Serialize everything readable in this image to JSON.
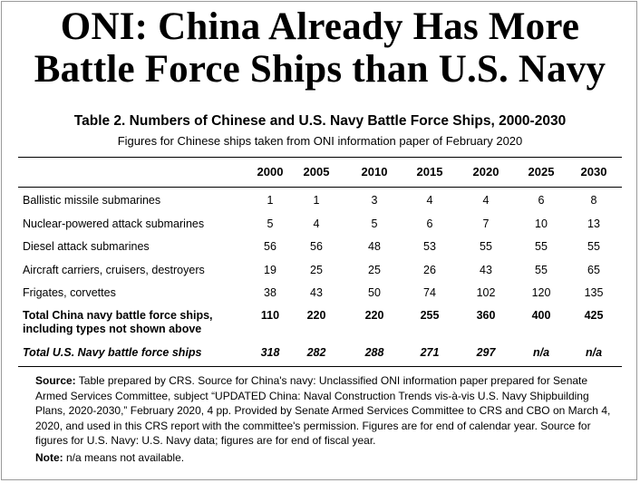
{
  "headline": {
    "line1": "ONI: China Already Has More",
    "line2": "Battle Force Ships than U.S. Navy"
  },
  "table": {
    "title": "Table 2. Numbers of Chinese and U.S. Navy Battle Force Ships, 2000-2030",
    "subtitle": "Figures for Chinese ships taken from ONI information paper of February 2020",
    "columns": [
      "2000",
      "2005",
      "2010",
      "2015",
      "2020",
      "2025",
      "2030"
    ],
    "rows": [
      {
        "label": "Ballistic missile submarines",
        "values": [
          "1",
          "1",
          "3",
          "4",
          "4",
          "6",
          "8"
        ]
      },
      {
        "label": "Nuclear-powered attack submarines",
        "values": [
          "5",
          "4",
          "5",
          "6",
          "7",
          "10",
          "13"
        ]
      },
      {
        "label": "Diesel attack submarines",
        "values": [
          "56",
          "56",
          "48",
          "53",
          "55",
          "55",
          "55"
        ]
      },
      {
        "label": "Aircraft carriers, cruisers, destroyers",
        "values": [
          "19",
          "25",
          "25",
          "26",
          "43",
          "55",
          "65"
        ]
      },
      {
        "label": "Frigates, corvettes",
        "values": [
          "38",
          "43",
          "50",
          "74",
          "102",
          "120",
          "135"
        ]
      },
      {
        "label_line1": "Total China navy battle force ships,",
        "label_line2": "including types not shown above",
        "values": [
          "110",
          "220",
          "220",
          "255",
          "360",
          "400",
          "425"
        ]
      },
      {
        "label": "Total U.S. Navy battle force ships",
        "values": [
          "318",
          "282",
          "288",
          "271",
          "297",
          "n/a",
          "n/a"
        ]
      }
    ]
  },
  "notes": {
    "source_label": "Source:",
    "source_text": " Table prepared by CRS. Source for China's navy: Unclassified ONI information paper prepared for Senate Armed Services Committee, subject “UPDATED China: Naval Construction Trends vis-à-vis U.S. Navy Shipbuilding Plans, 2020-2030,” February 2020, 4 pp. Provided by Senate Armed Services Committee to CRS and CBO on March 4, 2020, and used in this CRS report with the committee's permission. Figures are for end of calendar year. Source for figures for U.S. Navy: U.S. Navy data; figures are for end of fiscal year.",
    "note_label": "Note:",
    "note_text": " n/a means not available."
  }
}
